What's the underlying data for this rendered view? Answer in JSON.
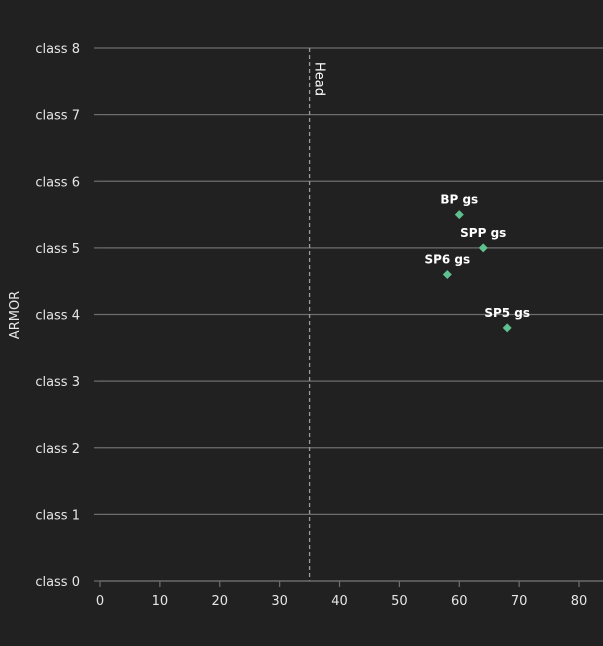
{
  "chart_data": {
    "type": "scatter",
    "ylabel": "ARMOR",
    "xlabel": "",
    "xlim": [
      0,
      84
    ],
    "ylim": [
      0,
      8
    ],
    "x_ticks": [
      0,
      10,
      20,
      30,
      40,
      50,
      60,
      70,
      80
    ],
    "y_ticks": [
      {
        "value": 0,
        "label": "class 0"
      },
      {
        "value": 1,
        "label": "class 1"
      },
      {
        "value": 2,
        "label": "class 2"
      },
      {
        "value": 3,
        "label": "class 3"
      },
      {
        "value": 4,
        "label": "class 4"
      },
      {
        "value": 5,
        "label": "class 5"
      },
      {
        "value": 6,
        "label": "class 6"
      },
      {
        "value": 7,
        "label": "class 7"
      },
      {
        "value": 8,
        "label": "class 8"
      }
    ],
    "grid": "horizontal",
    "reference_line": {
      "x": 35,
      "label": "Head"
    },
    "points": [
      {
        "label": "BP gs",
        "x": 60,
        "y": 5.5
      },
      {
        "label": "SPP gs",
        "x": 64,
        "y": 5.0
      },
      {
        "label": "SP6 gs",
        "x": 58,
        "y": 4.6
      },
      {
        "label": "SP5 gs",
        "x": 68,
        "y": 3.8
      }
    ],
    "colors": {
      "background": "#212121",
      "grid": "#6e6e6e",
      "point": "#5fbf8f",
      "text": "#e6e6e6",
      "reference": "#9a9a9a"
    }
  }
}
